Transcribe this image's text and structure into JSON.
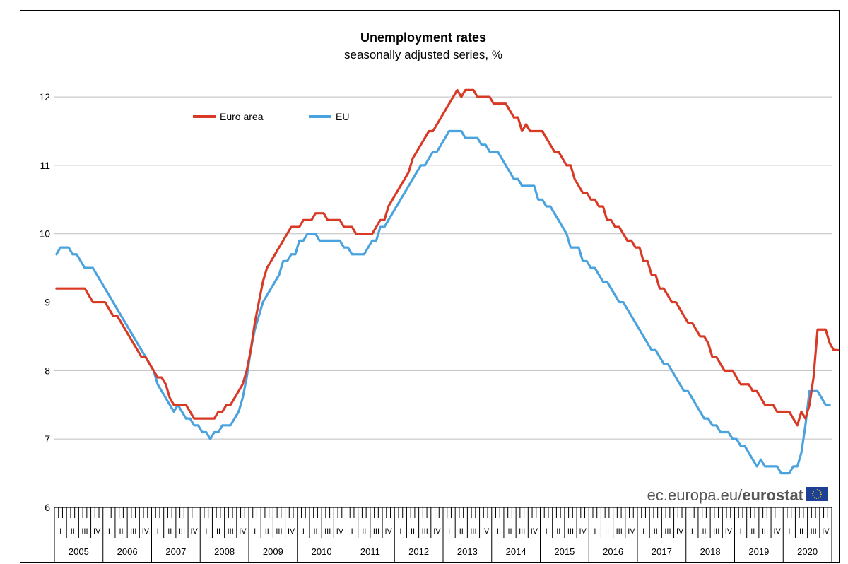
{
  "chart_data": {
    "type": "line",
    "title": "Unemployment rates",
    "subtitle": "seasonally adjusted series, %",
    "ylim": [
      6,
      12.6
    ],
    "yticks": [
      6,
      7,
      8,
      9,
      10,
      11,
      12
    ],
    "grid": true,
    "legend_placement": "top-left",
    "years": [
      "2005",
      "2006",
      "2007",
      "2008",
      "2009",
      "2010",
      "2011",
      "2012",
      "2013",
      "2014",
      "2015",
      "2016",
      "2017",
      "2018",
      "2019",
      "2020"
    ],
    "quarters": [
      "I",
      "II",
      "III",
      "IV"
    ],
    "x_start": "2005-01",
    "x_end": "2020-08",
    "series": [
      {
        "name": "Euro area",
        "color": "#d93a26",
        "values": [
          9.2,
          9.2,
          9.2,
          9.2,
          9.2,
          9.2,
          9.2,
          9.2,
          9.1,
          9.0,
          9.0,
          9.0,
          9.0,
          8.9,
          8.8,
          8.8,
          8.7,
          8.6,
          8.5,
          8.4,
          8.3,
          8.2,
          8.2,
          8.1,
          8.0,
          7.9,
          7.9,
          7.8,
          7.6,
          7.5,
          7.5,
          7.5,
          7.5,
          7.4,
          7.3,
          7.3,
          7.3,
          7.3,
          7.3,
          7.3,
          7.4,
          7.4,
          7.5,
          7.5,
          7.6,
          7.7,
          7.8,
          8.0,
          8.3,
          8.7,
          9.0,
          9.3,
          9.5,
          9.6,
          9.7,
          9.8,
          9.9,
          10.0,
          10.1,
          10.1,
          10.1,
          10.2,
          10.2,
          10.2,
          10.3,
          10.3,
          10.3,
          10.2,
          10.2,
          10.2,
          10.2,
          10.1,
          10.1,
          10.1,
          10.0,
          10.0,
          10.0,
          10.0,
          10.0,
          10.1,
          10.2,
          10.2,
          10.4,
          10.5,
          10.6,
          10.7,
          10.8,
          10.9,
          11.1,
          11.2,
          11.3,
          11.4,
          11.5,
          11.5,
          11.6,
          11.7,
          11.8,
          11.9,
          12.0,
          12.1,
          12.0,
          12.1,
          12.1,
          12.1,
          12.0,
          12.0,
          12.0,
          12.0,
          11.9,
          11.9,
          11.9,
          11.9,
          11.8,
          11.7,
          11.7,
          11.5,
          11.6,
          11.5,
          11.5,
          11.5,
          11.5,
          11.4,
          11.3,
          11.2,
          11.2,
          11.1,
          11.0,
          11.0,
          10.8,
          10.7,
          10.6,
          10.6,
          10.5,
          10.5,
          10.4,
          10.4,
          10.2,
          10.2,
          10.1,
          10.1,
          10.0,
          9.9,
          9.9,
          9.8,
          9.8,
          9.6,
          9.6,
          9.4,
          9.4,
          9.2,
          9.2,
          9.1,
          9.0,
          9.0,
          8.9,
          8.8,
          8.7,
          8.7,
          8.6,
          8.5,
          8.5,
          8.4,
          8.2,
          8.2,
          8.1,
          8.0,
          8.0,
          8.0,
          7.9,
          7.8,
          7.8,
          7.8,
          7.7,
          7.7,
          7.6,
          7.5,
          7.5,
          7.5,
          7.4,
          7.4,
          7.4,
          7.4,
          7.3,
          7.2,
          7.4,
          7.3,
          7.5,
          7.9,
          8.6,
          8.6,
          8.6,
          8.4,
          8.3,
          8.3
        ]
      },
      {
        "name": "EU",
        "color": "#4aa3df",
        "values": [
          9.7,
          9.8,
          9.8,
          9.8,
          9.7,
          9.7,
          9.6,
          9.5,
          9.5,
          9.5,
          9.4,
          9.3,
          9.2,
          9.1,
          9.0,
          8.9,
          8.8,
          8.7,
          8.6,
          8.5,
          8.4,
          8.3,
          8.2,
          8.1,
          8.0,
          7.8,
          7.7,
          7.6,
          7.5,
          7.4,
          7.5,
          7.4,
          7.3,
          7.3,
          7.2,
          7.2,
          7.1,
          7.1,
          7.0,
          7.1,
          7.1,
          7.2,
          7.2,
          7.2,
          7.3,
          7.4,
          7.6,
          7.9,
          8.3,
          8.6,
          8.8,
          9.0,
          9.1,
          9.2,
          9.3,
          9.4,
          9.6,
          9.6,
          9.7,
          9.7,
          9.9,
          9.9,
          10.0,
          10.0,
          10.0,
          9.9,
          9.9,
          9.9,
          9.9,
          9.9,
          9.9,
          9.8,
          9.8,
          9.7,
          9.7,
          9.7,
          9.7,
          9.8,
          9.9,
          9.9,
          10.1,
          10.1,
          10.2,
          10.3,
          10.4,
          10.5,
          10.6,
          10.7,
          10.8,
          10.9,
          11.0,
          11.0,
          11.1,
          11.2,
          11.2,
          11.3,
          11.4,
          11.5,
          11.5,
          11.5,
          11.5,
          11.4,
          11.4,
          11.4,
          11.4,
          11.3,
          11.3,
          11.2,
          11.2,
          11.2,
          11.1,
          11.0,
          10.9,
          10.8,
          10.8,
          10.7,
          10.7,
          10.7,
          10.7,
          10.5,
          10.5,
          10.4,
          10.4,
          10.3,
          10.2,
          10.1,
          10.0,
          9.8,
          9.8,
          9.8,
          9.6,
          9.6,
          9.5,
          9.5,
          9.4,
          9.3,
          9.3,
          9.2,
          9.1,
          9.0,
          9.0,
          8.9,
          8.8,
          8.7,
          8.6,
          8.5,
          8.4,
          8.3,
          8.3,
          8.2,
          8.1,
          8.1,
          8.0,
          7.9,
          7.8,
          7.7,
          7.7,
          7.6,
          7.5,
          7.4,
          7.3,
          7.3,
          7.2,
          7.2,
          7.1,
          7.1,
          7.1,
          7.0,
          7.0,
          6.9,
          6.9,
          6.8,
          6.7,
          6.6,
          6.7,
          6.6,
          6.6,
          6.6,
          6.6,
          6.5,
          6.5,
          6.5,
          6.6,
          6.6,
          6.8,
          7.2,
          7.7,
          7.7,
          7.7,
          7.6,
          7.5,
          7.5
        ]
      }
    ]
  },
  "brand": {
    "url_part": "ec.europa.eu/",
    "name_part": "eurostat"
  }
}
